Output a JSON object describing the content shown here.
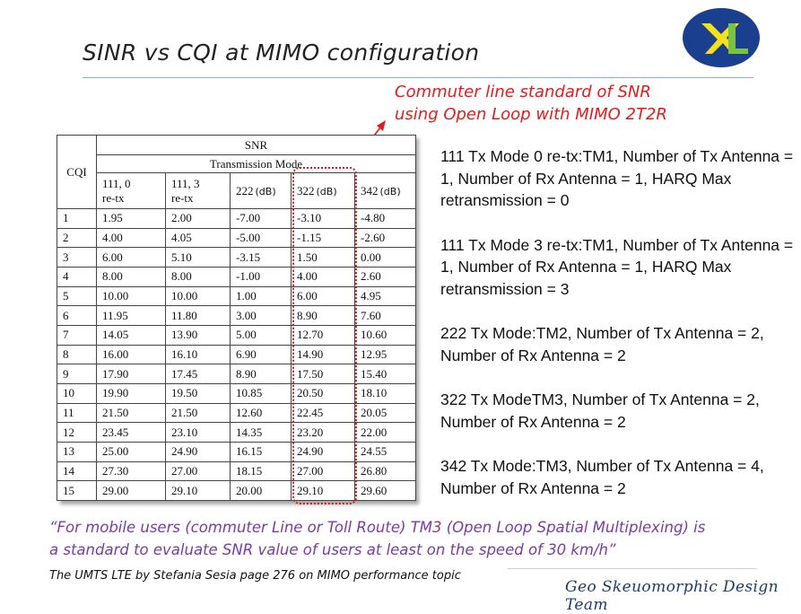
{
  "slide": {
    "title": "SINR vs CQI at MIMO configuration",
    "annotation_line1": "Commuter line standard of SNR",
    "annotation_line2": "using Open Loop with MIMO 2T2R",
    "quote_line1": "“For mobile users (commuter Line or Toll Route) TM3 (Open Loop Spatial Multiplexing) is",
    "quote_line2": "a standard to evaluate SNR value of users at least on the speed of 30 km/h”",
    "source": "The UMTS LTE by Stefania Sesia page 276 on MIMO performance topic",
    "footer": "Geo Skeuomorphic Design Team",
    "logo_letters": "XL",
    "colors": {
      "annotation": "#e41b1b",
      "quote": "#7a3aa8",
      "footer": "#1b3b73",
      "logo_blue": "#1a3f8f",
      "logo_yellow": "#f3e21a",
      "logo_green": "#7cc242"
    }
  },
  "table": {
    "row_header": "CQI",
    "group_header": "SNR",
    "sub_header": "Transmission Mode",
    "columns": [
      {
        "line1": "111, 0",
        "line2": "re-tx",
        "unit": ""
      },
      {
        "line1": "111, 3",
        "line2": "re-tx",
        "unit": ""
      },
      {
        "line1": "222",
        "line2": "",
        "unit": "(dB)"
      },
      {
        "line1": "322",
        "line2": "",
        "unit": "(dB)"
      },
      {
        "line1": "342",
        "line2": "",
        "unit": "(dB)"
      }
    ],
    "rows": [
      [
        "1",
        "1.95",
        "2.00",
        "-7.00",
        "-3.10",
        "-4.80"
      ],
      [
        "2",
        "4.00",
        "4.05",
        "-5.00",
        "-1.15",
        "-2.60"
      ],
      [
        "3",
        "6.00",
        "5.10",
        "-3.15",
        "1.50",
        "0.00"
      ],
      [
        "4",
        "8.00",
        "8.00",
        "-1.00",
        "4.00",
        "2.60"
      ],
      [
        "5",
        "10.00",
        "10.00",
        "1.00",
        "6.00",
        "4.95"
      ],
      [
        "6",
        "11.95",
        "11.80",
        "3.00",
        "8.90",
        "7.60"
      ],
      [
        "7",
        "14.05",
        "13.90",
        "5.00",
        "12.70",
        "10.60"
      ],
      [
        "8",
        "16.00",
        "16.10",
        "6.90",
        "14.90",
        "12.95"
      ],
      [
        "9",
        "17.90",
        "17.45",
        "8.90",
        "17.50",
        "15.40"
      ],
      [
        "10",
        "19.90",
        "19.50",
        "10.85",
        "20.50",
        "18.10"
      ],
      [
        "11",
        "21.50",
        "21.50",
        "12.60",
        "22.45",
        "20.05"
      ],
      [
        "12",
        "23.45",
        "23.10",
        "14.35",
        "23.20",
        "22.00"
      ],
      [
        "13",
        "25.00",
        "24.90",
        "16.15",
        "24.90",
        "24.55"
      ],
      [
        "14",
        "27.30",
        "27.00",
        "18.15",
        "27.00",
        "26.80"
      ],
      [
        "15",
        "29.00",
        "29.10",
        "20.00",
        "29.10",
        "29.60"
      ]
    ]
  },
  "notes": [
    "111 Tx Mode 0 re-tx:TM1, Number of Tx Antenna = 1, Number of Rx Antenna = 1, HARQ  Max retransmission = 0",
    "111 Tx Mode 3 re-tx:TM1, Number of Tx Antenna = 1, Number of Rx Antenna = 1, HARQ  Max retransmission = 3",
    "222 Tx Mode:TM2, Number of Tx Antenna = 2, Number of Rx Antenna = 2",
    "322 Tx ModeTM3, Number of Tx Antenna = 2, Number of Rx Antenna = 2",
    "342 Tx Mode:TM3, Number of Tx Antenna = 4, Number of Rx Antenna = 2"
  ]
}
